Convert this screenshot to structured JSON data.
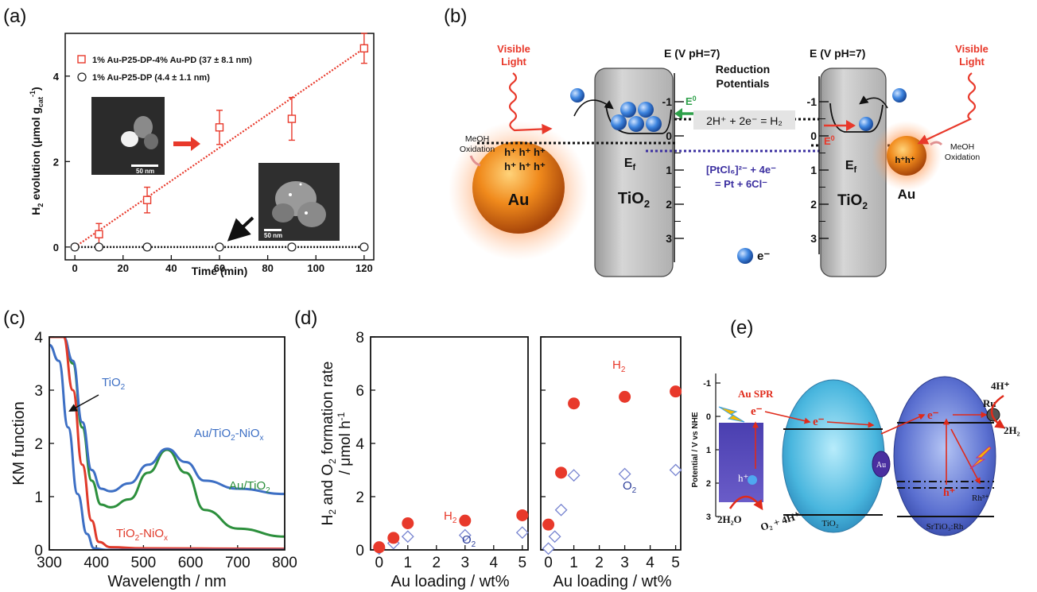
{
  "panel_labels": {
    "a": "(a)",
    "b": "(b)",
    "c": "(c)",
    "d": "(d)",
    "e": "(e)"
  },
  "colors": {
    "red": "#e8392b",
    "blue_c": "#3d6fc4",
    "green_c": "#2c8f3c",
    "red_c": "#e03a2a",
    "navy": "#2d3f9a",
    "purple": "#3b2fa0",
    "black": "#111111"
  },
  "chart_data": [
    {
      "id": "a",
      "type": "scatter",
      "xlabel": "Time (min)",
      "ylabel": "H2 evolution (μmol gcat-1)",
      "ylabel_parts": {
        "main": "H",
        "sub": "2",
        "rest": " evolution (μmol g",
        "sub2": "cat",
        "sup": "-1",
        "end": ")"
      },
      "xlim": [
        0,
        120
      ],
      "ylim": [
        0,
        5
      ],
      "xticks": [
        "0",
        "20",
        "40",
        "60",
        "80",
        "100",
        "120"
      ],
      "yticks": [
        "0",
        "2",
        "4"
      ],
      "series": [
        {
          "name": "1% Au-P25-DP-4% Au-PD (37 ± 8.1 nm)",
          "marker": "square",
          "color": "#e8392b",
          "x": [
            10,
            30,
            60,
            90,
            120
          ],
          "y": [
            0.3,
            1.1,
            2.8,
            3.0,
            4.65
          ],
          "err": [
            0.25,
            0.3,
            0.4,
            0.5,
            0.35
          ]
        },
        {
          "name": "1% Au-P25-DP (4.4 ± 1.1 nm)",
          "marker": "circle",
          "color": "#222222",
          "x": [
            0,
            10,
            30,
            60,
            90,
            120
          ],
          "y": [
            0,
            0,
            0,
            0,
            0,
            0
          ]
        }
      ],
      "fit_line": {
        "x": [
          0,
          120
        ],
        "y": [
          0,
          4.65
        ]
      },
      "insets": [
        {
          "scale_label": "50 nm"
        },
        {
          "scale_label": "50 nm"
        }
      ]
    },
    {
      "id": "c",
      "type": "line",
      "xlabel": "Wavelength / nm",
      "ylabel": "KM function",
      "xlim": [
        300,
        800
      ],
      "ylim": [
        0,
        4
      ],
      "xticks": [
        "300",
        "400",
        "500",
        "600",
        "700",
        "800"
      ],
      "yticks": [
        "0",
        "1",
        "2",
        "3",
        "4"
      ],
      "series": [
        {
          "name": "TiO2",
          "color": "#3d6fc4",
          "x": [
            300,
            320,
            340,
            360,
            380,
            395,
            420,
            500,
            800
          ],
          "y": [
            3.85,
            3.55,
            2.3,
            1.05,
            0.3,
            0.03,
            0,
            0,
            0
          ]
        },
        {
          "name": "TiO2-NiOx",
          "color": "#e03a2a",
          "x": [
            300,
            330,
            350,
            370,
            390,
            405,
            430,
            500,
            800
          ],
          "y": [
            4.0,
            4.0,
            3.0,
            1.6,
            0.55,
            0.15,
            0.05,
            0.03,
            0.02
          ]
        },
        {
          "name": "Au/TiO2",
          "color": "#2c8f3c",
          "x": [
            330,
            350,
            370,
            390,
            410,
            430,
            470,
            510,
            550,
            590,
            630,
            700,
            800
          ],
          "y": [
            4.0,
            3.5,
            2.3,
            1.3,
            0.85,
            0.8,
            0.95,
            1.45,
            1.88,
            1.45,
            0.75,
            0.4,
            0.25
          ]
        },
        {
          "name": "Au/TiO2-NiOx",
          "color": "#3d6fc4",
          "x": [
            330,
            350,
            370,
            390,
            410,
            430,
            470,
            510,
            550,
            590,
            630,
            700,
            800
          ],
          "y": [
            4.0,
            3.55,
            2.4,
            1.5,
            1.15,
            1.1,
            1.25,
            1.6,
            1.9,
            1.65,
            1.3,
            1.15,
            1.05
          ]
        }
      ],
      "annotations": [
        {
          "text": "TiO",
          "sub": "2",
          "color": "#3d6fc4"
        },
        {
          "text": "Au/TiO",
          "sub": "2",
          "tail": "-NiO",
          "sub2": "x",
          "color": "#3d6fc4"
        },
        {
          "text": "Au/TiO",
          "sub": "2",
          "color": "#2c8f3c"
        },
        {
          "text": "TiO",
          "sub": "2",
          "tail": "-NiO",
          "sub2": "x",
          "color": "#e03a2a"
        }
      ]
    },
    {
      "id": "d_left",
      "type": "scatter",
      "xlabel": "Au loading / wt%",
      "ylabel": "H2 and O2 formation rate / μmol h-1",
      "xlim": [
        -0.3,
        5.2
      ],
      "ylim": [
        0,
        8
      ],
      "xticks": [
        "0",
        "1",
        "2",
        "3",
        "4",
        "5"
      ],
      "yticks": [
        "0",
        "2",
        "4",
        "6",
        "8"
      ],
      "series": [
        {
          "name": "H2",
          "marker": "filled-circle",
          "color": "#e8392b",
          "x": [
            0,
            0.5,
            1,
            3,
            5
          ],
          "y": [
            0.1,
            0.45,
            1.0,
            1.1,
            1.3
          ]
        },
        {
          "name": "O2",
          "marker": "open-diamond",
          "color": "#4a5bc4",
          "x": [
            0,
            0.5,
            1,
            3,
            5
          ],
          "y": [
            0.05,
            0.25,
            0.5,
            0.55,
            0.65
          ]
        }
      ]
    },
    {
      "id": "d_right",
      "type": "scatter",
      "xlabel": "Au loading / wt%",
      "xlim": [
        -0.3,
        5.2
      ],
      "ylim": [
        0,
        8
      ],
      "xticks": [
        "0",
        "1",
        "2",
        "3",
        "4",
        "5"
      ],
      "series": [
        {
          "name": "H2",
          "marker": "filled-circle",
          "color": "#e8392b",
          "x": [
            0,
            0.5,
            1,
            3,
            5
          ],
          "y": [
            0.95,
            2.9,
            5.5,
            5.75,
            5.95
          ]
        },
        {
          "name": "O2",
          "marker": "open-diamond",
          "color": "#4a5bc4",
          "x": [
            0,
            0.25,
            0.5,
            1,
            3,
            5
          ],
          "y": [
            0.05,
            0.5,
            1.5,
            2.8,
            2.85,
            3.0
          ]
        }
      ]
    }
  ],
  "diagram_b": {
    "visible_light": [
      "Visible",
      "Light"
    ],
    "meoh": [
      "MeOH",
      "Oxidation"
    ],
    "holes_left": [
      "h⁺ h⁺ h⁺",
      "h⁺ h⁺ h⁺"
    ],
    "au": "Au",
    "tio2": "TiO",
    "tio2_sub": "2",
    "ef": "E",
    "ef_sub": "f",
    "e_axis": "E (V  pH=7)",
    "reduction": [
      "Reduction",
      "Potentials"
    ],
    "e0": "E",
    "e0_sup": "0",
    "h2_reaction": "2H⁺ + 2e⁻ = H₂",
    "pt_reaction": [
      "[PtCl₆]²⁻ + 4e⁻",
      "= Pt + 6Cl⁻"
    ],
    "electron_legend": "e⁻",
    "holes_right": "h⁺h⁺",
    "ticks": [
      "-1",
      "0",
      "1",
      "2",
      "3"
    ]
  },
  "diagram_d_labels": {
    "h2": "H",
    "h2_sub": "2",
    "o2": "O",
    "o2_sub": "2"
  },
  "diagram_e": {
    "y_axis": "Potential / V vs NHE",
    "ticks": [
      "-1",
      "0",
      "1",
      "2",
      "3"
    ],
    "au_spr": "Au SPR",
    "e1": "e⁻",
    "e2": "e⁻",
    "e3": "e⁻",
    "h1": "h⁺",
    "h2": "h⁺",
    "au": "Au",
    "ru": "Ru",
    "rh": "Rh³⁺",
    "tio2": "TiO₂",
    "srtio3": "SrTiO₃:Rh",
    "h2o": "2H₂O",
    "o2": "O₂ + 4H⁺",
    "h4": "4H⁺",
    "h2_out": "2H₂"
  }
}
